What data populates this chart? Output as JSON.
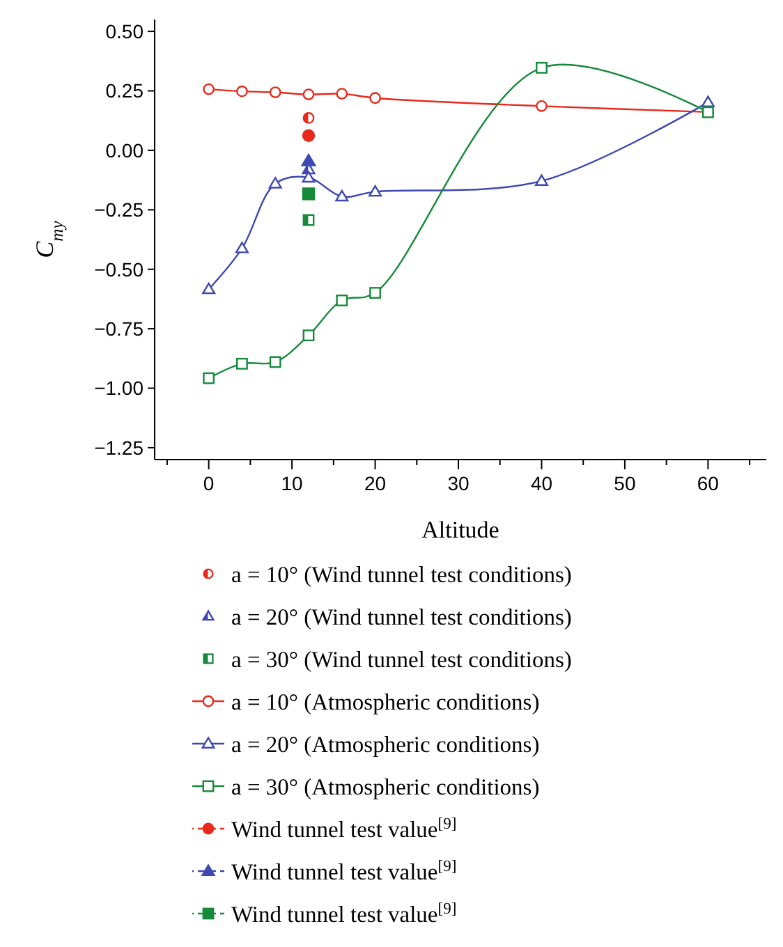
{
  "chart_data": {
    "type": "line",
    "xlabel": "Altitude",
    "ylabel": "C$_{my}$",
    "xlim": [
      -6.5,
      67
    ],
    "ylim": [
      -1.3,
      0.55
    ],
    "xticks": [
      {
        "value": -5,
        "label": null
      },
      0,
      {
        "value": 5,
        "label": null
      },
      10,
      {
        "value": 15,
        "label": null
      },
      20,
      {
        "value": 25,
        "label": null
      },
      30,
      {
        "value": 35,
        "label": null
      },
      40,
      {
        "value": 45,
        "label": null
      },
      50,
      {
        "value": 55,
        "label": null
      },
      60,
      {
        "value": 65,
        "label": null
      }
    ],
    "yticks": [
      {
        "value": 0.5,
        "label": "0.50"
      },
      {
        "value": 0.25,
        "label": "0.25"
      },
      {
        "value": 0,
        "label": "0.00"
      },
      {
        "value": -0.25,
        "label": "−0.25"
      },
      {
        "value": -0.5,
        "label": "−0.50"
      },
      {
        "value": -0.75,
        "label": "−0.75"
      },
      {
        "value": -1,
        "label": "−1.00"
      },
      {
        "value": -1.25,
        "label": "−1.25"
      }
    ],
    "grid": false,
    "legend": "bottom",
    "series": [
      {
        "name": "a = 10° (Wind tunnel test conditions)",
        "type": "scatter",
        "marker": "circle",
        "color": "#e8291c",
        "x": [
          12
        ],
        "values": [
          0.136
        ]
      },
      {
        "name": "a = 20° (Wind tunnel test conditions)",
        "type": "scatter",
        "marker": "triangle",
        "color": "#3f48b0",
        "x": [
          12
        ],
        "values": [
          -0.08
        ]
      },
      {
        "name": "a = 30° (Wind tunnel test conditions)",
        "type": "scatter",
        "marker": "square",
        "color": "#168a3a",
        "x": [
          12
        ],
        "values": [
          -0.293
        ]
      },
      {
        "name": "a = 10° (Atmospheric conditions)",
        "marker": "circle",
        "line_style": "solid",
        "color": "#e8291c",
        "x": [
          0,
          4,
          8,
          12,
          16,
          20,
          40,
          60
        ],
        "values": [
          0.257,
          0.248,
          0.244,
          0.235,
          0.238,
          0.22,
          0.186,
          0.161
        ]
      },
      {
        "name": "a = 20° (Atmospheric conditions)",
        "marker": "triangle",
        "line_style": "solid",
        "color": "#3f48b0",
        "x": [
          0,
          4,
          8,
          12,
          16,
          20,
          40,
          60
        ],
        "values": [
          -0.584,
          -0.412,
          -0.14,
          -0.115,
          -0.194,
          -0.174,
          -0.129,
          0.202
        ]
      },
      {
        "name": "a = 30° (Atmospheric conditions)",
        "marker": "square",
        "line_style": "solid",
        "color": "#168a3a",
        "x": [
          0,
          4,
          8,
          12,
          16,
          20,
          40,
          60
        ],
        "values": [
          -0.958,
          -0.897,
          -0.89,
          -0.778,
          -0.631,
          -0.599,
          0.347,
          0.16
        ]
      },
      {
        "name": "Wind tunnel test value$^{[9]}$",
        "type": "scatter",
        "marker": "circle",
        "line_style": "dashed",
        "color": "#e8291c",
        "x": [
          12
        ],
        "values": [
          0.062
        ]
      },
      {
        "name": "Wind tunnel test value$^{[9]}$",
        "type": "scatter",
        "marker": "triangle",
        "line_style": "dashed",
        "color": "#3f48b0",
        "x": [
          12
        ],
        "values": [
          -0.045
        ]
      },
      {
        "name": "Wind tunnel test value$^{[9]}$",
        "type": "scatter",
        "marker": "square",
        "line_style": "dashed",
        "color": "#168a3a",
        "x": [
          12
        ],
        "values": [
          -0.183
        ]
      }
    ]
  }
}
